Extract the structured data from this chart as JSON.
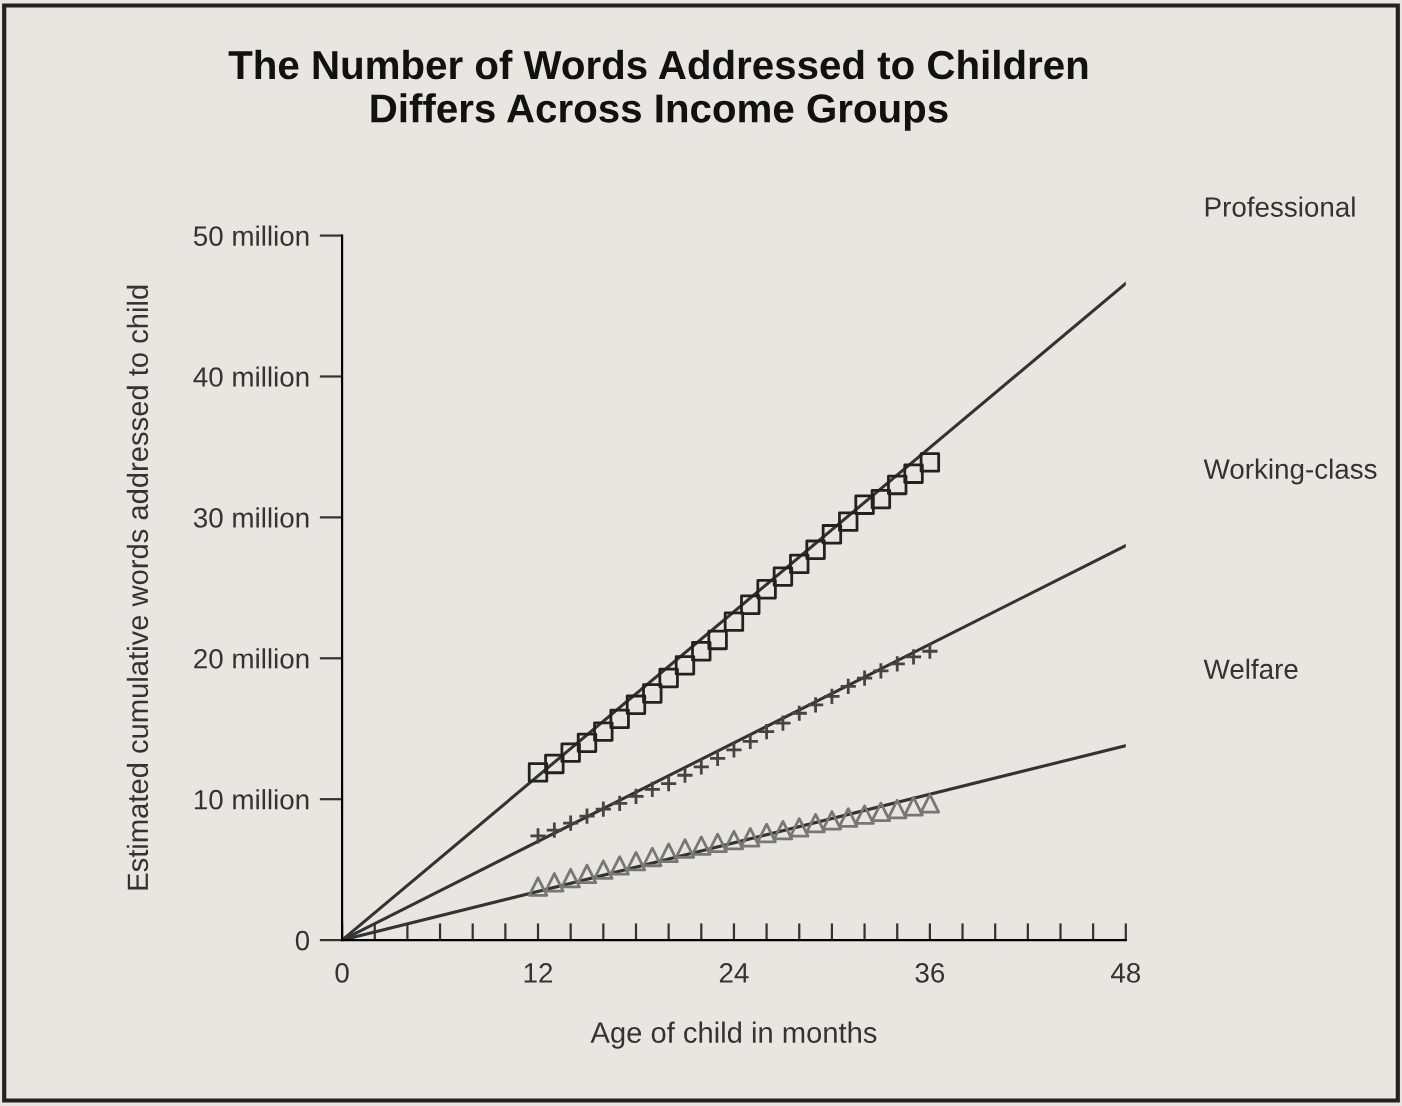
{
  "chart_data": {
    "type": "scatter",
    "title": "The Number of Words Addressed to Children\nDiffers Across Income Groups",
    "xlabel": "Age of child in months",
    "ylabel": "Estimated cumulative words addressed to child",
    "xlim": [
      0,
      48
    ],
    "ylim": [
      0,
      50
    ],
    "xticks": [
      0,
      {
        "value": 2,
        "label": null
      },
      {
        "value": 4,
        "label": null
      },
      {
        "value": 6,
        "label": null
      },
      {
        "value": 8,
        "label": null
      },
      {
        "value": 10,
        "label": null
      },
      12,
      {
        "value": 14,
        "label": null
      },
      {
        "value": 16,
        "label": null
      },
      {
        "value": 18,
        "label": null
      },
      {
        "value": 20,
        "label": null
      },
      {
        "value": 22,
        "label": null
      },
      24,
      {
        "value": 26,
        "label": null
      },
      {
        "value": 28,
        "label": null
      },
      {
        "value": 30,
        "label": null
      },
      {
        "value": 32,
        "label": null
      },
      {
        "value": 34,
        "label": null
      },
      36,
      {
        "value": 38,
        "label": null
      },
      {
        "value": 40,
        "label": null
      },
      {
        "value": 42,
        "label": null
      },
      {
        "value": 44,
        "label": null
      },
      {
        "value": 46,
        "label": null
      },
      48
    ],
    "yticks": [
      0,
      {
        "value": 10,
        "label": "10 million"
      },
      {
        "value": 20,
        "label": "20 million"
      },
      {
        "value": 30,
        "label": "30 million"
      },
      {
        "value": 40,
        "label": "40 million"
      },
      {
        "value": 50,
        "label": "50 million"
      }
    ],
    "grid": false,
    "legend": false,
    "series": [
      {
        "type": "line",
        "name": "Professional",
        "color": "#333333",
        "marker": "none",
        "line_style": "solid",
        "x": [
          0,
          48
        ],
        "values": [
          0,
          46.6
        ]
      },
      {
        "type": "line",
        "name": "Working-class",
        "color": "#333333",
        "marker": "none",
        "line_style": "solid",
        "x": [
          0,
          48
        ],
        "values": [
          0,
          28.0
        ]
      },
      {
        "type": "line",
        "name": "Welfare",
        "color": "#333333",
        "marker": "none",
        "line_style": "solid",
        "x": [
          0,
          48
        ],
        "values": [
          0,
          13.8
        ]
      },
      {
        "color": "#222222",
        "marker": "square",
        "x": [
          12,
          13,
          14,
          15,
          16,
          17,
          18,
          19,
          20,
          21,
          22,
          23,
          24,
          25,
          26,
          27,
          28,
          29,
          30,
          31,
          32,
          33,
          34,
          35,
          36
        ],
        "values": [
          11.9,
          12.5,
          13.3,
          14.0,
          14.8,
          15.7,
          16.7,
          17.5,
          18.6,
          19.5,
          20.5,
          21.3,
          22.6,
          23.8,
          24.9,
          25.8,
          26.7,
          27.7,
          28.8,
          29.7,
          30.9,
          31.3,
          32.3,
          33.1,
          33.9
        ]
      },
      {
        "color": "#444444",
        "marker": "cross",
        "x": [
          12,
          13,
          14,
          15,
          16,
          17,
          18,
          19,
          20,
          21,
          22,
          23,
          24,
          25,
          26,
          27,
          28,
          29,
          30,
          31,
          32,
          33,
          34,
          35,
          36
        ],
        "values": [
          7.4,
          7.8,
          8.3,
          8.8,
          9.3,
          9.7,
          10.2,
          10.7,
          11.1,
          11.7,
          12.3,
          12.9,
          13.5,
          14.1,
          14.8,
          15.4,
          16.1,
          16.7,
          17.3,
          18.0,
          18.6,
          19.1,
          19.6,
          20.1,
          20.5
        ]
      },
      {
        "color": "#777777",
        "marker": "triangle",
        "x": [
          12,
          13,
          14,
          15,
          16,
          17,
          18,
          19,
          20,
          21,
          22,
          23,
          24,
          25,
          26,
          27,
          28,
          29,
          30,
          31,
          32,
          33,
          34,
          35,
          36
        ],
        "values": [
          3.8,
          4.1,
          4.4,
          4.7,
          5.0,
          5.3,
          5.6,
          5.9,
          6.2,
          6.5,
          6.7,
          6.9,
          7.1,
          7.3,
          7.6,
          7.8,
          8.0,
          8.3,
          8.5,
          8.7,
          8.9,
          9.1,
          9.3,
          9.5,
          9.7
        ]
      }
    ]
  }
}
